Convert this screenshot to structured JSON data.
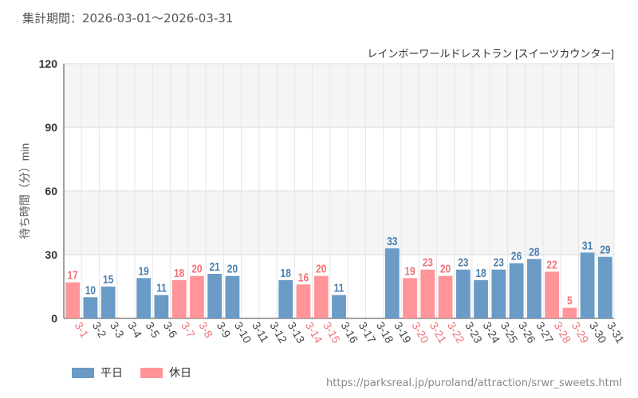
{
  "header": {
    "period": "集計期間：2026-03-01〜2026-03-31"
  },
  "footer": {
    "source": "https://parksreal.jp/puroland/attraction/srwr_sweets.html"
  },
  "colors": {
    "weekday": "#6a9bc6",
    "holiday": "#ff9598",
    "weekday_label": "#4a7fae",
    "holiday_label": "#f07378"
  },
  "chart_data": {
    "type": "bar",
    "title": "レインボーワールドレストラン [スイーツカウンター]",
    "ylabel": "待ち時間（分）min",
    "xlabel": "",
    "ylim": [
      0,
      120
    ],
    "yticks": [
      0,
      30,
      60,
      90,
      120
    ],
    "grid": true,
    "legend_position": "bottom-left",
    "series": [
      {
        "name": "平日",
        "key": "weekday"
      },
      {
        "name": "休日",
        "key": "holiday"
      }
    ],
    "categories": [
      "3-1",
      "3-2",
      "3-3",
      "3-4",
      "3-5",
      "3-6",
      "3-7",
      "3-8",
      "3-9",
      "3-10",
      "3-11",
      "3-12",
      "3-13",
      "3-14",
      "3-15",
      "3-16",
      "3-17",
      "3-18",
      "3-19",
      "3-20",
      "3-21",
      "3-22",
      "3-23",
      "3-24",
      "3-25",
      "3-26",
      "3-27",
      "3-28",
      "3-29",
      "3-30",
      "3-31"
    ],
    "values": [
      17,
      10,
      15,
      null,
      19,
      11,
      18,
      20,
      21,
      20,
      null,
      null,
      18,
      16,
      20,
      11,
      null,
      null,
      33,
      19,
      23,
      20,
      23,
      18,
      23,
      26,
      28,
      22,
      5,
      31,
      29
    ],
    "day_type": [
      "holiday",
      "weekday",
      "weekday",
      "weekday",
      "weekday",
      "weekday",
      "holiday",
      "holiday",
      "weekday",
      "weekday",
      "weekday",
      "weekday",
      "weekday",
      "holiday",
      "holiday",
      "weekday",
      "weekday",
      "weekday",
      "weekday",
      "holiday",
      "holiday",
      "holiday",
      "weekday",
      "weekday",
      "weekday",
      "weekday",
      "weekday",
      "holiday",
      "holiday",
      "weekday",
      "weekday"
    ]
  }
}
